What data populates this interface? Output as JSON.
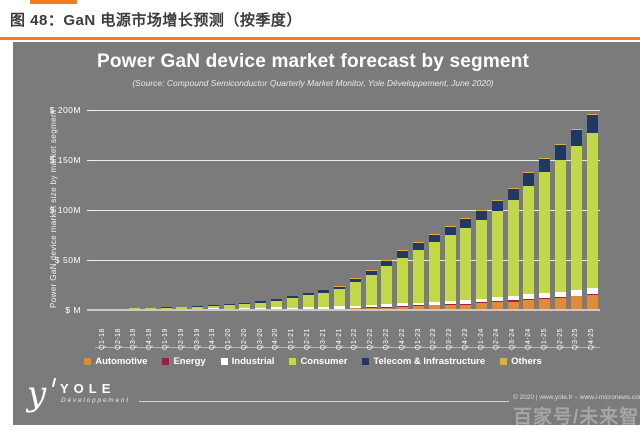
{
  "colors": {
    "accent_orange": "#f47b20",
    "panel_gray": "#7b7b7b",
    "text_white": "#ffffff",
    "watermark_gray": "#a6a6a6"
  },
  "page_header": {
    "title": "图 48：GaN 电源市场增长预测（按季度）"
  },
  "chart": {
    "title": "Power GaN device market forecast by segment",
    "subtitle": "(Source: Compound Semiconductor Quarterly Market Monitor, Yole Développement, June 2020)",
    "y_axis_label": "Power GaN device market size by market segment",
    "y_ticks": [
      {
        "label": "$ 200M",
        "value": 200
      },
      {
        "label": "$ 150M",
        "value": 150
      },
      {
        "label": "$ 100M",
        "value": 100
      },
      {
        "label": "$ 50M",
        "value": 50
      },
      {
        "label": "$ M",
        "value": 0
      }
    ]
  },
  "chart_data": {
    "type": "bar",
    "stacked": true,
    "title": "Power GaN device market forecast by segment",
    "xlabel": "",
    "ylabel": "Power GaN device market size by market segment",
    "unit": "USD millions",
    "ylim": [
      0,
      202
    ],
    "grid": true,
    "legend_position": "bottom",
    "categories": [
      "Q1-18",
      "Q2-18",
      "Q3-18",
      "Q4-18",
      "Q1-19",
      "Q2-19",
      "Q3-19",
      "Q4-19",
      "Q1-20",
      "Q2-20",
      "Q3-20",
      "Q4-20",
      "Q1-21",
      "Q2-21",
      "Q3-21",
      "Q4-21",
      "Q1-22",
      "Q2-22",
      "Q3-22",
      "Q4-22",
      "Q1-23",
      "Q2-23",
      "Q3-23",
      "Q4-23",
      "Q1-24",
      "Q2-24",
      "Q3-24",
      "Q4-24",
      "Q1-25",
      "Q2-25",
      "Q3-25",
      "Q4-25"
    ],
    "series": [
      {
        "name": "Automotive",
        "color": "#e08a3c",
        "values": [
          0.02,
          0.03,
          0.04,
          0.04,
          0.06,
          0.07,
          0.08,
          0.1,
          0.18,
          0.21,
          0.27,
          0.33,
          0.56,
          0.68,
          0.8,
          0.96,
          1.6,
          2.0,
          2.5,
          3.0,
          4.1,
          4.6,
          5.0,
          5.5,
          7.0,
          7.7,
          8.5,
          9.7,
          11.4,
          12.5,
          13.6,
          14.7
        ]
      },
      {
        "name": "Energy",
        "color": "#9e1f3f",
        "values": [
          0.03,
          0.05,
          0.06,
          0.06,
          0.09,
          0.11,
          0.12,
          0.15,
          0.12,
          0.14,
          0.18,
          0.22,
          0.28,
          0.34,
          0.4,
          0.48,
          0.48,
          0.6,
          0.75,
          0.9,
          0.7,
          0.8,
          0.8,
          0.9,
          1.0,
          1.1,
          1.2,
          1.4,
          0.8,
          0.8,
          0.9,
          1.0
        ]
      },
      {
        "name": "Industrial",
        "color": "#ffffff",
        "values": [
          0.45,
          0.68,
          0.9,
          0.9,
          0.9,
          1.05,
          1.2,
          1.5,
          1.08,
          1.26,
          1.62,
          1.98,
          1.4,
          1.7,
          2.0,
          2.4,
          1.6,
          2.0,
          2.5,
          3.0,
          2.7,
          3.0,
          3.4,
          3.7,
          3.5,
          3.9,
          4.3,
          4.8,
          4.6,
          5.0,
          5.4,
          5.9
        ]
      },
      {
        "name": "Consumer",
        "color": "#c3d74b",
        "values": [
          0.3,
          0.45,
          0.6,
          0.6,
          1.35,
          1.58,
          1.8,
          2.25,
          3.6,
          4.2,
          5.4,
          6.6,
          9.8,
          11.9,
          14.0,
          16.8,
          24.3,
          30.4,
          38.0,
          45.6,
          53.0,
          59.3,
          65.5,
          71.8,
          78.5,
          86.4,
          95.8,
          108.3,
          120.8,
          132.0,
          143.9,
          155.8
        ]
      },
      {
        "name": "Telecom & Infrastructure",
        "color": "#1f3864",
        "values": [
          0.18,
          0.27,
          0.36,
          0.36,
          0.54,
          0.63,
          0.72,
          0.9,
          0.9,
          1.05,
          1.35,
          1.65,
          1.68,
          2.04,
          2.4,
          2.88,
          3.5,
          4.4,
          5.5,
          6.6,
          6.8,
          7.6,
          8.4,
          9.2,
          9.0,
          9.9,
          11.0,
          12.4,
          13.7,
          14.9,
          16.3,
          17.6
        ]
      },
      {
        "name": "Others",
        "color": "#dfaf3e",
        "values": [
          0.02,
          0.03,
          0.04,
          0.04,
          0.06,
          0.07,
          0.08,
          0.1,
          0.12,
          0.14,
          0.18,
          0.22,
          0.28,
          0.34,
          0.4,
          0.48,
          0.48,
          0.6,
          0.75,
          0.9,
          0.7,
          0.8,
          0.8,
          0.9,
          1.0,
          1.1,
          1.2,
          1.4,
          0.8,
          0.8,
          0.9,
          1.0
        ]
      }
    ]
  },
  "footer": {
    "logo_glyph": "y",
    "logo_main": "YOLE",
    "logo_sub": "Développement",
    "copyright": "© 2020 | www.yole.fr – www.i-micronews.com"
  },
  "watermark": "百家号/未来智库"
}
